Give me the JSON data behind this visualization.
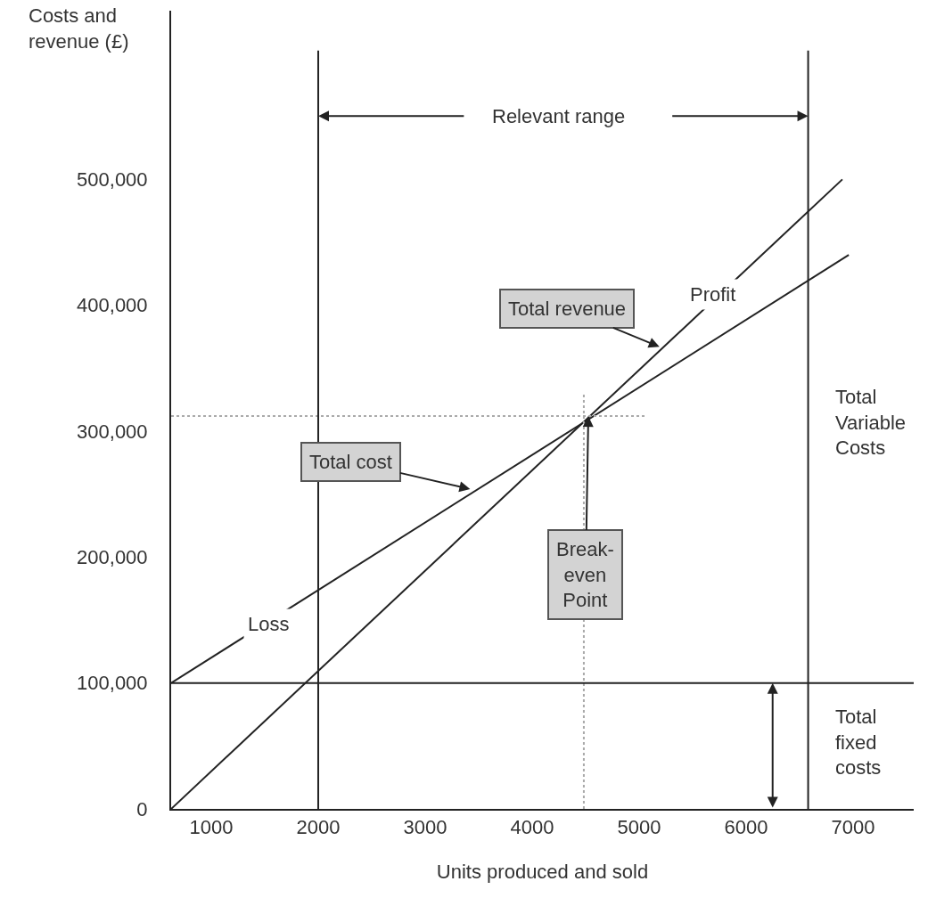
{
  "chart_data": {
    "type": "line",
    "xlabel": "Units produced and sold",
    "ylabel": "Costs and\nrevenue (£)",
    "xlim": [
      625,
      7567
    ],
    "ylim": [
      0,
      634000
    ],
    "xticks": [
      1000,
      2000,
      3000,
      4000,
      5000,
      6000,
      7000
    ],
    "yticks": [
      0,
      {
        "value": 100000,
        "label": "100,000"
      },
      {
        "value": 200000,
        "label": "200,000"
      },
      {
        "value": 300000,
        "label": "300,000"
      },
      {
        "value": 400000,
        "label": "400,000"
      },
      {
        "value": 500000,
        "label": "500,000"
      }
    ],
    "grid": false,
    "marker": "none",
    "series": [
      {
        "color": "#222222",
        "x": [
          625,
          6900
        ],
        "values": [
          0,
          500000
        ],
        "line_style": "solid"
      },
      {
        "color": "#222222",
        "x": [
          625,
          6960
        ],
        "values": [
          100000,
          440000
        ],
        "line_style": "solid"
      },
      {
        "color": "#aaaaaa",
        "x": [
          625,
          5067
        ],
        "values": [
          312000,
          312000
        ],
        "line_style": "dotted"
      },
      {
        "color": "#aaaaaa",
        "x": [
          4483,
          4483
        ],
        "values": [
          0,
          330000
        ],
        "line_style": "dotted"
      }
    ],
    "ref_lines": [
      {
        "axis": "x",
        "value": 2000,
        "color": "#222222"
      },
      {
        "axis": "x",
        "value": 6580,
        "color": "#222222"
      },
      {
        "axis": "y",
        "value": 100000,
        "color": "#222222"
      }
    ],
    "annotations": [
      "Relevant range",
      "Profit",
      "Loss",
      {
        "text": "Total revenue",
        "x": 5190,
        "y": 367000
      },
      {
        "text": "Total cost",
        "x": 3420,
        "y": 254000
      },
      {
        "text": "Break-\neven\nPoint",
        "x": 4525,
        "y": 312000
      },
      "Total\nVariable\nCosts",
      "Total\nfixed\ncosts"
    ]
  }
}
